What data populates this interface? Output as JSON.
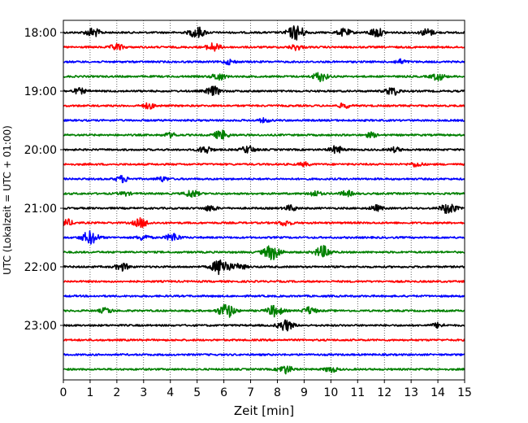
{
  "chart_data": {
    "type": "line",
    "title": "",
    "xlabel": "Zeit  [min]",
    "ylabel": "UTC (Lokalzeit = UTC + 01:00)",
    "xlim": [
      0,
      15
    ],
    "x_ticks": [
      "0",
      "1",
      "2",
      "3",
      "4",
      "5",
      "6",
      "7",
      "8",
      "9",
      "10",
      "11",
      "12",
      "13",
      "14",
      "15"
    ],
    "y_tick_labels": [
      "18:00",
      "19:00",
      "20:00",
      "21:00",
      "22:00",
      "23:00"
    ],
    "grid": "vertical dotted",
    "colors": [
      "#000000",
      "#ff0000",
      "#0000ff",
      "#008000"
    ],
    "traces": [
      {
        "start": "18:00",
        "color": "#000000",
        "bursts": [
          [
            1.1,
            1.0
          ],
          [
            5.0,
            1.2
          ],
          [
            8.7,
            1.6
          ],
          [
            10.5,
            0.8
          ],
          [
            11.7,
            1.0
          ],
          [
            13.6,
            0.8
          ]
        ]
      },
      {
        "start": "18:15",
        "color": "#ff0000",
        "bursts": [
          [
            2.0,
            0.7
          ],
          [
            5.6,
            0.9
          ],
          [
            8.7,
            0.6
          ]
        ]
      },
      {
        "start": "18:30",
        "color": "#0000ff",
        "bursts": [
          [
            6.2,
            0.5
          ],
          [
            12.6,
            0.5
          ]
        ]
      },
      {
        "start": "18:45",
        "color": "#008000",
        "bursts": [
          [
            5.8,
            0.8
          ],
          [
            9.6,
            1.0
          ],
          [
            14.0,
            0.8
          ]
        ]
      },
      {
        "start": "19:00",
        "color": "#000000",
        "bursts": [
          [
            0.6,
            0.6
          ],
          [
            5.6,
            1.0
          ],
          [
            12.3,
            0.9
          ]
        ]
      },
      {
        "start": "19:15",
        "color": "#ff0000",
        "bursts": [
          [
            3.2,
            0.6
          ],
          [
            10.5,
            0.5
          ]
        ]
      },
      {
        "start": "19:30",
        "color": "#0000ff",
        "bursts": [
          [
            7.5,
            0.4
          ]
        ]
      },
      {
        "start": "19:45",
        "color": "#008000",
        "bursts": [
          [
            4.0,
            0.5
          ],
          [
            5.9,
            1.0
          ],
          [
            11.5,
            0.5
          ]
        ]
      },
      {
        "start": "20:00",
        "color": "#000000",
        "bursts": [
          [
            5.3,
            0.8
          ],
          [
            6.9,
            0.8
          ],
          [
            10.2,
            0.8
          ],
          [
            12.4,
            0.5
          ]
        ]
      },
      {
        "start": "20:15",
        "color": "#ff0000",
        "bursts": [
          [
            9.0,
            0.4
          ],
          [
            13.2,
            0.5
          ]
        ]
      },
      {
        "start": "20:30",
        "color": "#0000ff",
        "bursts": [
          [
            2.2,
            0.7
          ],
          [
            3.7,
            0.5
          ]
        ]
      },
      {
        "start": "20:45",
        "color": "#008000",
        "bursts": [
          [
            2.3,
            0.4
          ],
          [
            4.8,
            0.8
          ],
          [
            9.4,
            0.6
          ],
          [
            10.6,
            0.6
          ]
        ]
      },
      {
        "start": "21:00",
        "color": "#000000",
        "bursts": [
          [
            5.5,
            0.6
          ],
          [
            8.5,
            0.6
          ],
          [
            11.7,
            0.6
          ],
          [
            14.4,
            1.2
          ]
        ]
      },
      {
        "start": "21:15",
        "color": "#ff0000",
        "bursts": [
          [
            0.1,
            0.8
          ],
          [
            2.9,
            1.0
          ],
          [
            8.3,
            0.6
          ]
        ]
      },
      {
        "start": "21:30",
        "color": "#0000ff",
        "bursts": [
          [
            1.0,
            1.4
          ],
          [
            3.0,
            0.6
          ],
          [
            4.1,
            0.9
          ]
        ]
      },
      {
        "start": "21:45",
        "color": "#008000",
        "bursts": [
          [
            7.8,
            1.6
          ],
          [
            9.7,
            1.3
          ]
        ]
      },
      {
        "start": "22:00",
        "color": "#000000",
        "bursts": [
          [
            2.2,
            0.8
          ],
          [
            5.9,
            1.8
          ],
          [
            6.6,
            0.6
          ]
        ]
      },
      {
        "start": "22:15",
        "color": "#ff0000",
        "bursts": []
      },
      {
        "start": "22:30",
        "color": "#0000ff",
        "bursts": []
      },
      {
        "start": "22:45",
        "color": "#008000",
        "bursts": [
          [
            1.6,
            0.6
          ],
          [
            6.1,
            1.5
          ],
          [
            7.9,
            1.2
          ],
          [
            9.2,
            0.8
          ]
        ]
      },
      {
        "start": "23:00",
        "color": "#000000",
        "bursts": [
          [
            8.3,
            1.2
          ],
          [
            14.0,
            0.5
          ]
        ]
      },
      {
        "start": "23:15",
        "color": "#ff0000",
        "bursts": []
      },
      {
        "start": "23:30",
        "color": "#0000ff",
        "bursts": []
      },
      {
        "start": "23:45",
        "color": "#008000",
        "bursts": [
          [
            8.3,
            0.9
          ],
          [
            10.0,
            0.6
          ]
        ]
      }
    ]
  }
}
